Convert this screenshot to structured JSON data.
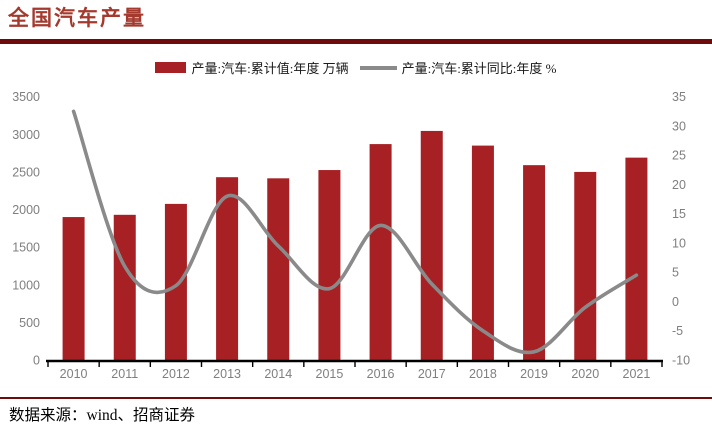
{
  "header": {
    "title": "全国汽车产量"
  },
  "footer": {
    "source": "数据来源：wind、招商证券"
  },
  "colors": {
    "bar": "#A62024",
    "line": "#8A8A8A",
    "title": "#A43A2E",
    "rule": "#6E0B0B",
    "axis_text": "#7F7F7F"
  },
  "chart_data": {
    "type": "bar",
    "subtype": "bar+line combo, dual axis",
    "categories": [
      "2010",
      "2011",
      "2012",
      "2013",
      "2014",
      "2015",
      "2016",
      "2017",
      "2018",
      "2019",
      "2020",
      "2021"
    ],
    "series": [
      {
        "name": "产量:汽车:累计值:年度 万辆",
        "type": "bar",
        "axis": "left",
        "color": "#A62024",
        "values": [
          1900,
          1930,
          2075,
          2430,
          2415,
          2525,
          2870,
          3045,
          2850,
          2590,
          2500,
          2690
        ]
      },
      {
        "name": "产量:汽车:累计同比:年度 %",
        "type": "line",
        "axis": "right",
        "color": "#8A8A8A",
        "values": [
          32.5,
          6.0,
          2.7,
          18.0,
          9.5,
          2.2,
          13.0,
          3.0,
          -5.0,
          -8.6,
          -1.0,
          4.5
        ]
      }
    ],
    "left_axis": {
      "min": 0,
      "max": 3500,
      "step": 500,
      "ticks": [
        0,
        500,
        1000,
        1500,
        2000,
        2500,
        3000,
        3500
      ]
    },
    "right_axis": {
      "min": -10,
      "max": 35,
      "step": 5,
      "ticks": [
        -10,
        -5,
        0,
        5,
        10,
        15,
        20,
        25,
        30,
        35
      ]
    },
    "grid": false,
    "legend_position": "top-center",
    "line_smooth": true
  }
}
